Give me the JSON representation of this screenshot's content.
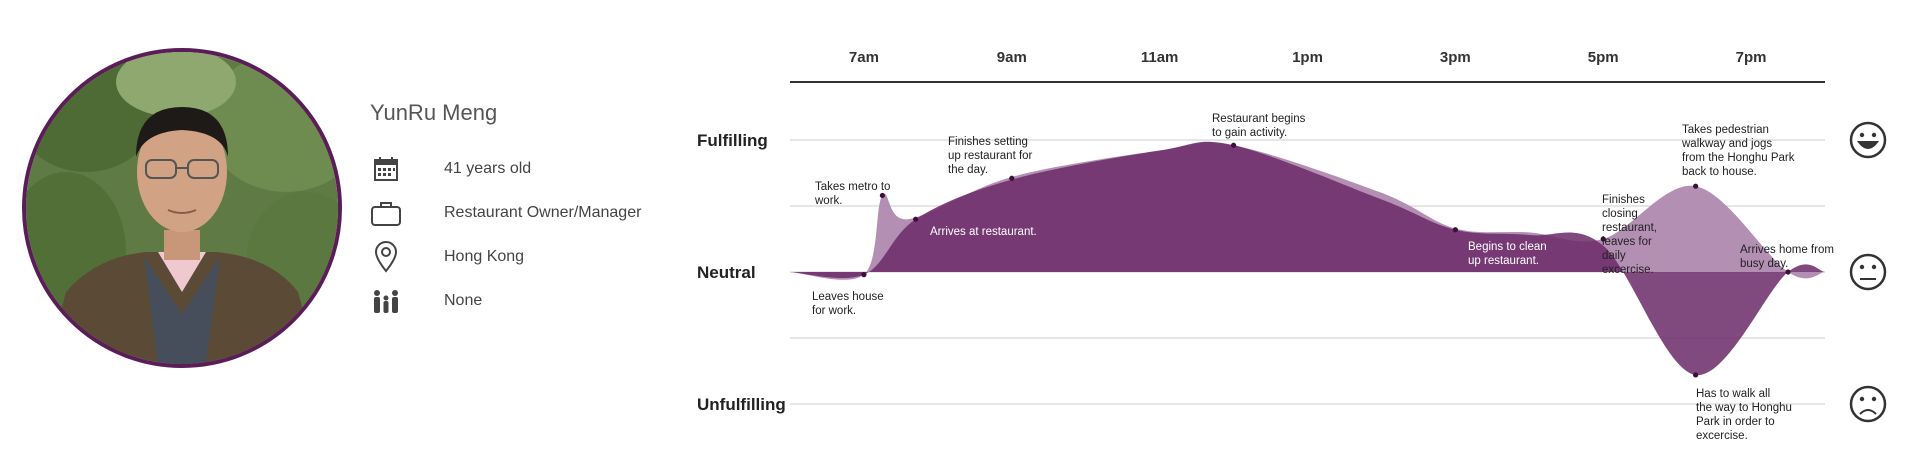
{
  "persona": {
    "name": "YunRu Meng",
    "details": [
      {
        "icon": "calendar-icon",
        "text": "41 years old"
      },
      {
        "icon": "briefcase-icon",
        "text": "Restaurant Owner/Manager"
      },
      {
        "icon": "location-pin-icon",
        "text": "Hong Kong"
      },
      {
        "icon": "family-icon",
        "text": "None"
      }
    ]
  },
  "colors": {
    "primary": "#6b2a68",
    "secondary": "#b089b0",
    "photo_border": "#5a1d57"
  },
  "chart_data": {
    "type": "area",
    "x_ticks": [
      "7am",
      "9am",
      "11am",
      "1pm",
      "3pm",
      "5pm",
      "7pm"
    ],
    "y_levels": [
      "Fulfilling",
      "Neutral",
      "Unfulfilling"
    ],
    "y_icons": [
      "laughing-face-icon",
      "neutral-face-icon",
      "sad-face-icon"
    ],
    "ylim": [
      -1,
      1
    ],
    "series": [
      {
        "points": [
          {
            "t": 6.0,
            "v": 0.0
          },
          {
            "t": 7.0,
            "v": -0.02
          },
          {
            "t": 7.7,
            "v": 0.4
          },
          {
            "t": 9.0,
            "v": 0.7
          },
          {
            "t": 11.0,
            "v": 0.92
          },
          {
            "t": 12.0,
            "v": 0.96
          },
          {
            "t": 14.0,
            "v": 0.55
          },
          {
            "t": 15.0,
            "v": 0.32
          },
          {
            "t": 16.0,
            "v": 0.28
          },
          {
            "t": 17.0,
            "v": 0.2
          },
          {
            "t": 18.25,
            "v": -0.78
          },
          {
            "t": 19.5,
            "v": 0.0
          },
          {
            "t": 20.0,
            "v": 0.0
          }
        ]
      },
      {
        "points": [
          {
            "t": 6.0,
            "v": 0.0
          },
          {
            "t": 7.0,
            "v": -0.02
          },
          {
            "t": 7.25,
            "v": 0.58
          },
          {
            "t": 7.6,
            "v": 0.4
          },
          {
            "t": 9.0,
            "v": 0.72
          },
          {
            "t": 11.0,
            "v": 0.92
          },
          {
            "t": 12.0,
            "v": 0.96
          },
          {
            "t": 14.0,
            "v": 0.6
          },
          {
            "t": 15.0,
            "v": 0.33
          },
          {
            "t": 16.0,
            "v": 0.3
          },
          {
            "t": 17.0,
            "v": 0.25
          },
          {
            "t": 18.25,
            "v": 0.65
          },
          {
            "t": 19.5,
            "v": 0.0
          },
          {
            "t": 20.0,
            "v": 0.0
          }
        ]
      }
    ],
    "events": [
      {
        "t": 7.0,
        "v": -0.02,
        "label": "Leaves house for work."
      },
      {
        "t": 7.25,
        "v": 0.58,
        "label": "Takes metro to work."
      },
      {
        "t": 7.7,
        "v": 0.4,
        "label": "Arrives at restaurant."
      },
      {
        "t": 9.0,
        "v": 0.71,
        "label": "Finishes setting up restaurant for the day."
      },
      {
        "t": 12.0,
        "v": 0.96,
        "label": "Restaurant begins to gain activity."
      },
      {
        "t": 15.0,
        "v": 0.32,
        "label": "Begins to clean up restaurant."
      },
      {
        "t": 17.0,
        "v": 0.25,
        "label": "Finishes closing restaurant, leaves for daily excercise."
      },
      {
        "t": 18.25,
        "v": 0.65,
        "label": "Takes pedestrian walkway and jogs from the Honghu Park back to house."
      },
      {
        "t": 18.25,
        "v": -0.78,
        "label": "Has to walk all the way to Honghu Park in order to excercise."
      },
      {
        "t": 19.5,
        "v": 0.0,
        "label": "Arrives home from busy day."
      }
    ]
  }
}
